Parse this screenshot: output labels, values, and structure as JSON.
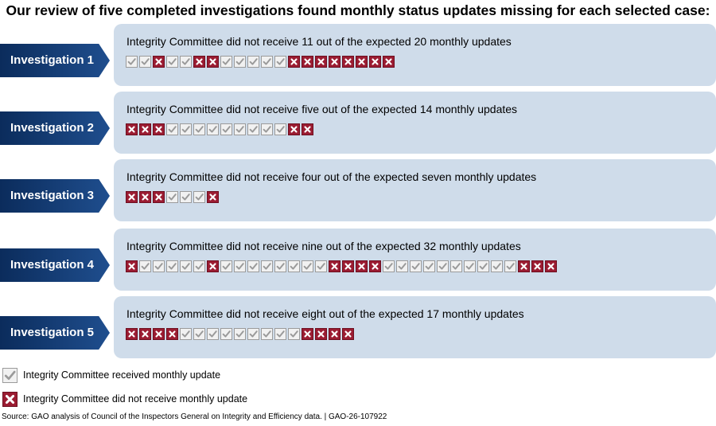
{
  "title": "Our review of five completed investigations found monthly status updates missing for each selected case:",
  "colors": {
    "received": "#f1f1f1",
    "missing": "#9b1c32",
    "panel": "#cfdcea",
    "label": "#12386f"
  },
  "investigations": [
    {
      "label": "Investigation 1",
      "caption": "Integrity Committee did not receive 11 out of the expected 20 monthly updates",
      "updates": "YYNYYNNYYYYYNNNNNNNN"
    },
    {
      "label": "Investigation 2",
      "caption": "Integrity Committee did not receive five out of the expected 14 monthly updates",
      "updates": "NNNYYYYYYYYYNN"
    },
    {
      "label": "Investigation 3",
      "caption": "Integrity Committee did not receive four out of the expected seven monthly updates",
      "updates": "NNNYYYN"
    },
    {
      "label": "Investigation 4",
      "caption": "Integrity Committee did not receive nine out of the expected 32 monthly updates",
      "updates": "NYYYYYNYYYYYYYYNNNNYYYYYYYYYYNNN"
    },
    {
      "label": "Investigation 5",
      "caption": "Integrity Committee did not receive eight out of the expected 17 monthly updates",
      "updates": "NNNNYYYYYYYYYNNNN"
    }
  ],
  "legend": {
    "received": "Integrity Committee received monthly update",
    "missing": "Integrity Committee did not receive monthly update"
  },
  "source": "Source: GAO analysis of Council of the Inspectors General on Integrity and Efficiency data.  |  GAO-26-107922"
}
